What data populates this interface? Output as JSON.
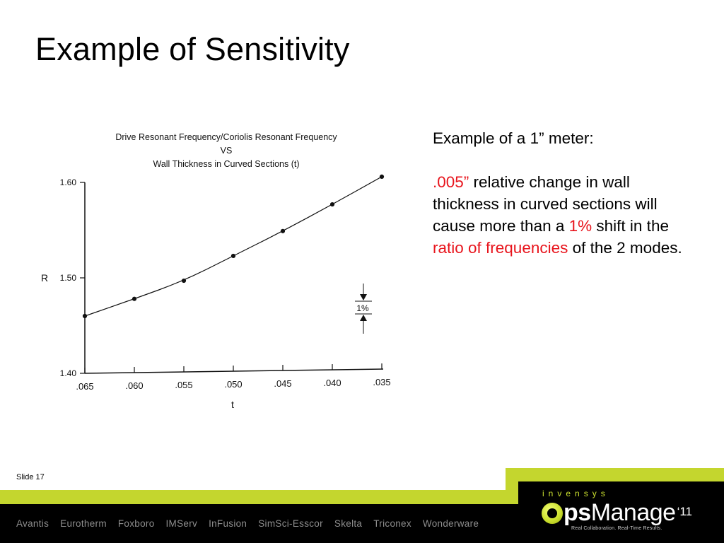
{
  "slide": {
    "title": "Example of Sensitivity",
    "number_label": "Slide 17"
  },
  "chart_data": {
    "type": "scatter",
    "title": "Drive Resonant Frequency/Coriolis Resonant Frequency",
    "title_line2": "VS",
    "title_line3": "Wall Thickness in Curved Sections (t)",
    "xlabel": "t",
    "ylabel": "R",
    "x_ticks": [
      ".065",
      ".060",
      ".055",
      ".050",
      ".045",
      ".040",
      ".035"
    ],
    "y_ticks": [
      "1.40",
      "1.50",
      "1.60"
    ],
    "ylim": [
      1.4,
      1.6
    ],
    "xlim": [
      0.065,
      0.035
    ],
    "x": [
      0.065,
      0.06,
      0.055,
      0.05,
      0.045,
      0.04,
      0.035
    ],
    "values": [
      1.46,
      1.478,
      1.497,
      1.523,
      1.549,
      1.577,
      1.606
    ],
    "fit_line": true,
    "annotation": "1%"
  },
  "text_panel": {
    "heading": "Example of a 1” meter:",
    "value_red": ".005”",
    "part1": " relative change in wall thickness in curved sections will cause more than a ",
    "percent_red": "1%",
    "part2": " shift in the ",
    "ratio_red": "ratio of frequencies",
    "part3": " of the 2 modes."
  },
  "footer": {
    "brands": [
      "Avantis",
      "Eurotherm",
      "Foxboro",
      "IMServ",
      "InFusion",
      "SimSci-Esscor",
      "Skelta",
      "Triconex",
      "Wonderware"
    ],
    "company": "invensys",
    "logo_bold": "ps",
    "logo_rest": "Manage",
    "logo_year": "‘11",
    "tagline": "Real Collaboration. Real-Time Results.",
    "colors": {
      "background": "#000000",
      "accent": "#c4d62e"
    }
  }
}
